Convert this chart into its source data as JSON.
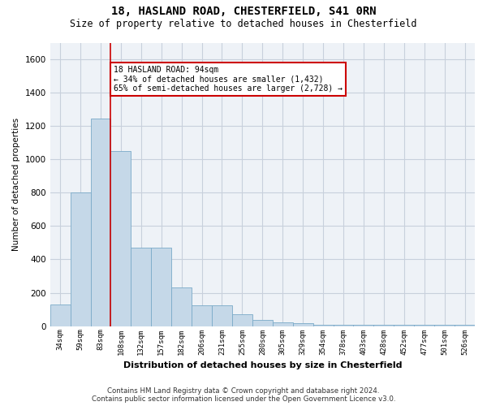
{
  "title": "18, HASLAND ROAD, CHESTERFIELD, S41 0RN",
  "subtitle": "Size of property relative to detached houses in Chesterfield",
  "xlabel": "Distribution of detached houses by size in Chesterfield",
  "ylabel": "Number of detached properties",
  "bar_color": "#c5d8e8",
  "bar_edge_color": "#7aaac8",
  "categories": [
    "34sqm",
    "59sqm",
    "83sqm",
    "108sqm",
    "132sqm",
    "157sqm",
    "182sqm",
    "206sqm",
    "231sqm",
    "255sqm",
    "280sqm",
    "305sqm",
    "329sqm",
    "354sqm",
    "378sqm",
    "403sqm",
    "428sqm",
    "452sqm",
    "477sqm",
    "501sqm",
    "526sqm"
  ],
  "values": [
    130,
    800,
    1245,
    1050,
    470,
    470,
    230,
    125,
    125,
    70,
    35,
    25,
    20,
    10,
    10,
    10,
    10,
    10,
    10,
    10,
    10
  ],
  "ylim": [
    0,
    1700
  ],
  "yticks": [
    0,
    200,
    400,
    600,
    800,
    1000,
    1200,
    1400,
    1600
  ],
  "property_line_x": 2.5,
  "property_line_color": "#cc0000",
  "annotation_text": "18 HASLAND ROAD: 94sqm\n← 34% of detached houses are smaller (1,432)\n65% of semi-detached houses are larger (2,728) →",
  "annotation_box_color": "#ffffff",
  "annotation_box_edge": "#cc0000",
  "footer": "Contains HM Land Registry data © Crown copyright and database right 2024.\nContains public sector information licensed under the Open Government Licence v3.0.",
  "grid_color": "#c8d0dc",
  "background_color": "#eef2f7"
}
